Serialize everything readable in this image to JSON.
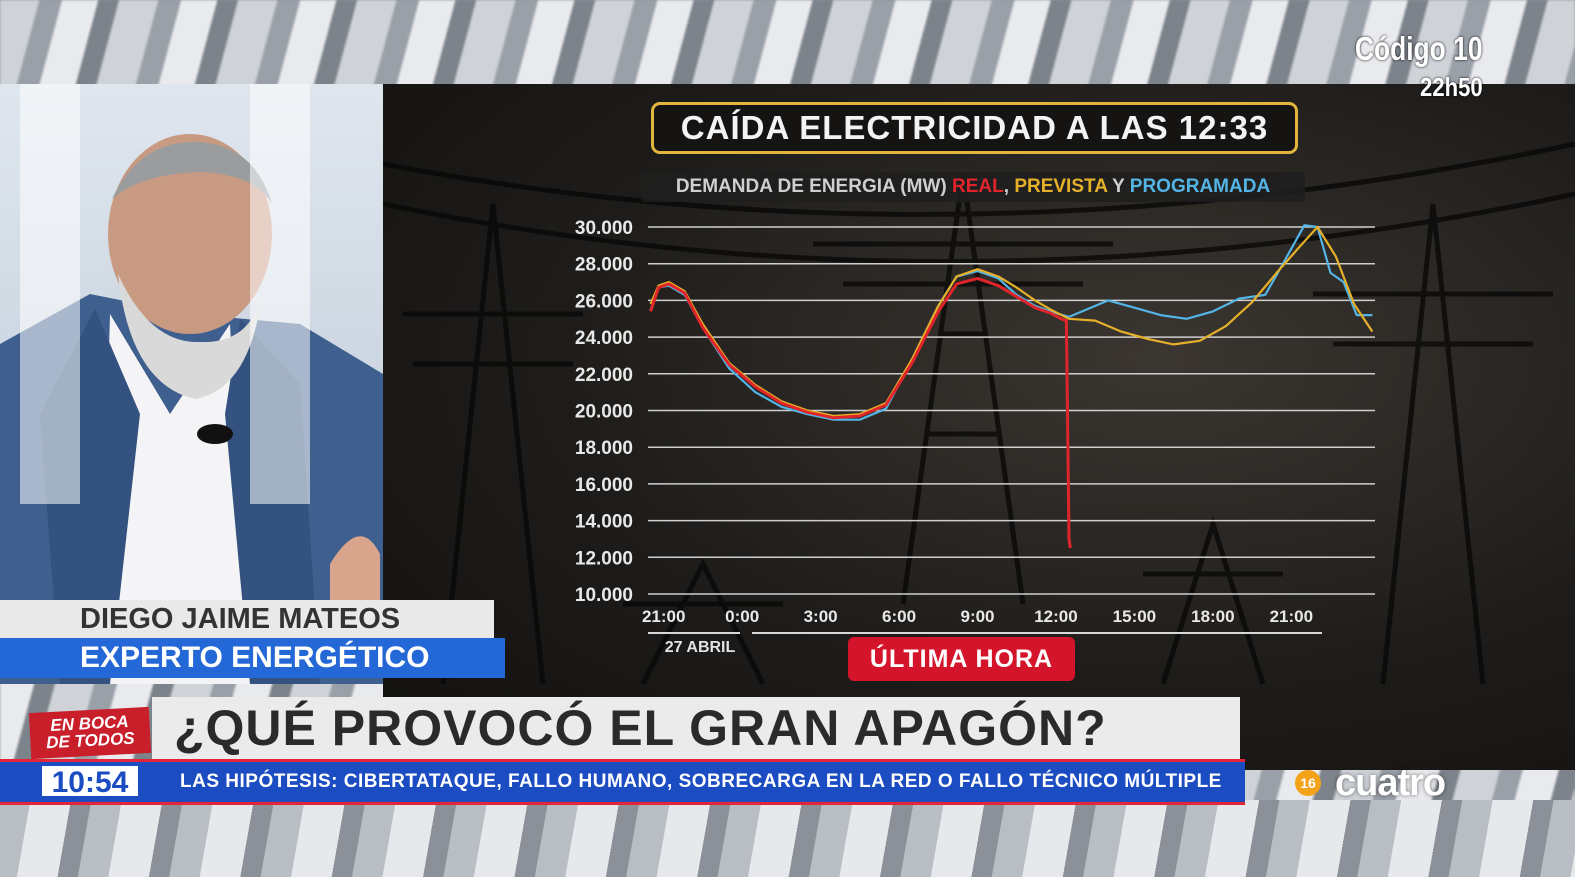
{
  "overlay": {
    "program_code": "Código 10",
    "program_time": "22h50",
    "guest_name": "DIEGO JAIME MATEOS",
    "guest_role": "EXPERTO ENERGÉTICO",
    "breaking_label": "ÚLTIMA HORA",
    "headline": "¿QUÉ PROVOCÓ EL GRAN APAGÓN?",
    "show_logo_line1": "EN BOCA",
    "show_logo_line2": "DE TODOS",
    "clock": "10:54",
    "ticker": "LAS HIPÓTESIS: CIBERTATAQUE, FALLO HUMANO, SOBRECARGA EN LA RED O FALLO TÉCNICO MÚLTIPLE",
    "channel": "cuatro",
    "age_rating": "16"
  },
  "colors": {
    "real": "#e0252a",
    "prevista": "#e6b02a",
    "programada": "#53b4e6",
    "title_border": "#e2b53c",
    "breaking": "#d4142a",
    "ticker_bg": "#1b4cc2",
    "role_bar": "#2467d6"
  },
  "chart_data": {
    "type": "line",
    "title": "CAÍDA ELECTRICIDAD A LAS 12:33",
    "subtitle_prefix": "DEMANDA DE ENERGIA (MW)",
    "subtitle_and": "Y",
    "yticks": [
      "30.000",
      "28.000",
      "26.000",
      "24.000",
      "22.000",
      "20.000",
      "18.000",
      "16.000",
      "14.000",
      "12.000",
      "10.000"
    ],
    "ylim": [
      10000,
      30000
    ],
    "xticks": [
      "21:00",
      "0:00",
      "3:00",
      "6:00",
      "9:00",
      "12:00",
      "15:00",
      "18:00",
      "21:00"
    ],
    "x_hours": [
      -3,
      0,
      3,
      6,
      9,
      12,
      15,
      18,
      21
    ],
    "xlim": [
      -3.6,
      24.2
    ],
    "date_label": "27 ABRIL",
    "grid": true,
    "series": [
      {
        "name": "REAL",
        "x": [
          -3.5,
          -3.2,
          -2.8,
          -2.2,
          -1.5,
          -0.5,
          0.5,
          1.5,
          2.5,
          3.5,
          4.5,
          5.5,
          6.5,
          7.5,
          8.2,
          9,
          9.8,
          10.5,
          11.2,
          11.8,
          12.2,
          12.4,
          12.5,
          12.55
        ],
        "y": [
          25400,
          26700,
          26900,
          26400,
          24500,
          22500,
          21300,
          20400,
          19900,
          19600,
          19700,
          20300,
          22600,
          25400,
          26900,
          27200,
          26800,
          26200,
          25600,
          25300,
          25000,
          24900,
          13000,
          12500
        ]
      },
      {
        "name": "PREVISTA",
        "x": [
          -3.5,
          -3.2,
          -2.8,
          -2.2,
          -1.5,
          -0.5,
          0.5,
          1.5,
          2.5,
          3.5,
          4.5,
          5.5,
          6.5,
          7.5,
          8.2,
          9,
          9.8,
          10.5,
          11.2,
          11.8,
          12.5,
          13.5,
          14.5,
          15.5,
          16.5,
          17.5,
          18.5,
          19.5,
          20.5,
          21.3,
          22,
          22.7,
          23.4,
          24.1
        ],
        "y": [
          25800,
          26800,
          27000,
          26500,
          24700,
          22600,
          21400,
          20500,
          20000,
          19700,
          19800,
          20400,
          22800,
          25700,
          27300,
          27700,
          27300,
          26700,
          26000,
          25500,
          25000,
          24900,
          24300,
          23900,
          23600,
          23800,
          24600,
          25900,
          27600,
          28900,
          30000,
          28400,
          25800,
          24300
        ]
      },
      {
        "name": "PROGRAMADA",
        "x": [
          -3.5,
          -3.2,
          -2.8,
          -2.2,
          -1.5,
          -0.5,
          0.5,
          1.5,
          2.5,
          3.5,
          4.5,
          5.5,
          6.5,
          7.5,
          8.2,
          9,
          9.8,
          10.5,
          11.2,
          11.8,
          12.5,
          13,
          14,
          15,
          16,
          17,
          18,
          19,
          20,
          20.6,
          21.5,
          22,
          22.5,
          23,
          23.5,
          24.1
        ],
        "y": [
          25500,
          26700,
          26800,
          26300,
          24500,
          22300,
          21000,
          20200,
          19800,
          19500,
          19500,
          20100,
          22800,
          25700,
          27300,
          27600,
          27200,
          26300,
          25700,
          25400,
          25100,
          25400,
          26000,
          25600,
          25200,
          25000,
          25400,
          26100,
          26300,
          27800,
          30100,
          30000,
          27500,
          27000,
          25200,
          25200
        ]
      }
    ]
  }
}
